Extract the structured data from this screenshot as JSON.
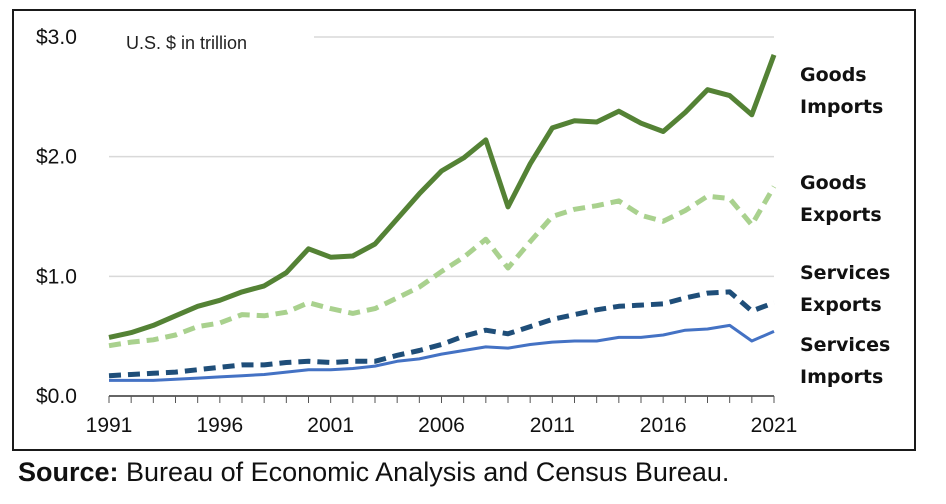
{
  "chart_data": {
    "type": "line",
    "unit_note": "U.S. $ in trillion",
    "x": [
      1991,
      1992,
      1993,
      1994,
      1995,
      1996,
      1997,
      1998,
      1999,
      2000,
      2001,
      2002,
      2003,
      2004,
      2005,
      2006,
      2007,
      2008,
      2009,
      2010,
      2011,
      2012,
      2013,
      2014,
      2015,
      2016,
      2017,
      2018,
      2019,
      2020,
      2021
    ],
    "x_tick_labels": [
      "1991",
      "1996",
      "2001",
      "2006",
      "2011",
      "2016",
      "2021"
    ],
    "x_ticks": [
      1991,
      1996,
      2001,
      2006,
      2011,
      2016,
      2021
    ],
    "y_tick_labels": [
      "$0.0",
      "$1.0",
      "$2.0",
      "$3.0"
    ],
    "y_ticks": [
      0,
      1,
      2,
      3
    ],
    "xlim": [
      1991,
      2021
    ],
    "ylim": [
      0,
      3
    ],
    "grid": "horizontal",
    "legend": "direct labels right",
    "series": [
      {
        "name_lines": [
          "Goods",
          "Imports"
        ],
        "color": "#548235",
        "style": "solid",
        "width": 5,
        "values": [
          0.49,
          0.53,
          0.59,
          0.67,
          0.75,
          0.8,
          0.87,
          0.92,
          1.03,
          1.23,
          1.16,
          1.17,
          1.27,
          1.48,
          1.69,
          1.88,
          1.99,
          2.14,
          1.58,
          1.94,
          2.24,
          2.3,
          2.29,
          2.38,
          2.28,
          2.21,
          2.37,
          2.56,
          2.51,
          2.35,
          2.85
        ]
      },
      {
        "name_lines": [
          "Goods",
          "Exports"
        ],
        "color": "#a9d18e",
        "style": "dashed",
        "width": 5,
        "values": [
          0.42,
          0.45,
          0.47,
          0.51,
          0.58,
          0.61,
          0.68,
          0.67,
          0.7,
          0.78,
          0.73,
          0.69,
          0.73,
          0.82,
          0.91,
          1.04,
          1.16,
          1.31,
          1.07,
          1.29,
          1.5,
          1.56,
          1.59,
          1.63,
          1.51,
          1.46,
          1.55,
          1.67,
          1.65,
          1.43,
          1.75
        ]
      },
      {
        "name_lines": [
          "Services",
          "Exports"
        ],
        "color": "#1f4e79",
        "style": "dashed",
        "width": 5,
        "values": [
          0.17,
          0.18,
          0.19,
          0.2,
          0.22,
          0.24,
          0.26,
          0.26,
          0.28,
          0.29,
          0.28,
          0.29,
          0.29,
          0.34,
          0.38,
          0.43,
          0.5,
          0.55,
          0.52,
          0.58,
          0.64,
          0.68,
          0.72,
          0.75,
          0.76,
          0.77,
          0.82,
          0.86,
          0.87,
          0.71,
          0.78
        ]
      },
      {
        "name_lines": [
          "Services",
          "Imports"
        ],
        "color": "#4472c4",
        "style": "solid",
        "width": 3,
        "values": [
          0.13,
          0.13,
          0.13,
          0.14,
          0.15,
          0.16,
          0.17,
          0.18,
          0.2,
          0.22,
          0.22,
          0.23,
          0.25,
          0.29,
          0.31,
          0.35,
          0.38,
          0.41,
          0.4,
          0.43,
          0.45,
          0.46,
          0.46,
          0.49,
          0.49,
          0.51,
          0.55,
          0.56,
          0.59,
          0.46,
          0.54
        ]
      }
    ]
  },
  "source": {
    "label": "Source:",
    "text": " Bureau of Economic Analysis and Census Bureau."
  }
}
